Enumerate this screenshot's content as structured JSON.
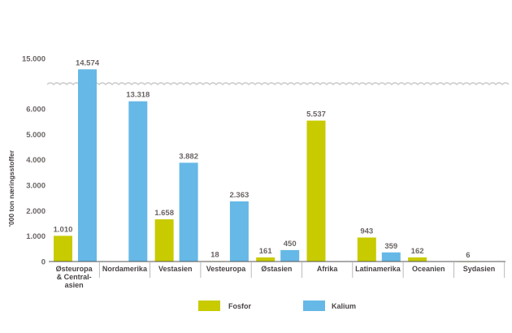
{
  "chart_data": {
    "type": "bar",
    "title": "",
    "xlabel": "",
    "ylabel": "'000 ton næringsstoffer",
    "categories": [
      [
        "Østeuropa",
        "& Central-",
        "asien"
      ],
      [
        "Nordamerika"
      ],
      [
        "Vestasien"
      ],
      [
        "Vesteuropa"
      ],
      [
        "Østasien"
      ],
      [
        "Afrika"
      ],
      [
        "Latinamerika"
      ],
      [
        "Oceanien"
      ],
      [
        "Sydasien"
      ]
    ],
    "series": [
      {
        "name": "Fosfor",
        "color": "#c8cb00",
        "values": [
          1010,
          null,
          1658,
          18,
          161,
          5537,
          943,
          162,
          6
        ],
        "labels": [
          "1.010",
          "",
          "1.658",
          "18",
          "161",
          "5.537",
          "943",
          "162",
          "6"
        ]
      },
      {
        "name": "Kalium",
        "color": "#66b8e6",
        "values": [
          14574,
          13318,
          3882,
          2363,
          450,
          null,
          359,
          null,
          null
        ],
        "labels": [
          "14.574",
          "13.318",
          "3.882",
          "2.363",
          "450",
          "",
          "359",
          "",
          ""
        ]
      }
    ],
    "yticks": [
      0,
      1000,
      2000,
      3000,
      4000,
      5000,
      6000,
      15000
    ],
    "ytick_labels": [
      "0",
      "1.000",
      "2.000",
      "3.000",
      "4.000",
      "5.000",
      "6.000",
      "15.000"
    ],
    "axis_break": {
      "from": 6000,
      "to": 15000
    },
    "ylim": [
      0,
      15000
    ],
    "grid": false,
    "legend_position": "bottom-center"
  }
}
